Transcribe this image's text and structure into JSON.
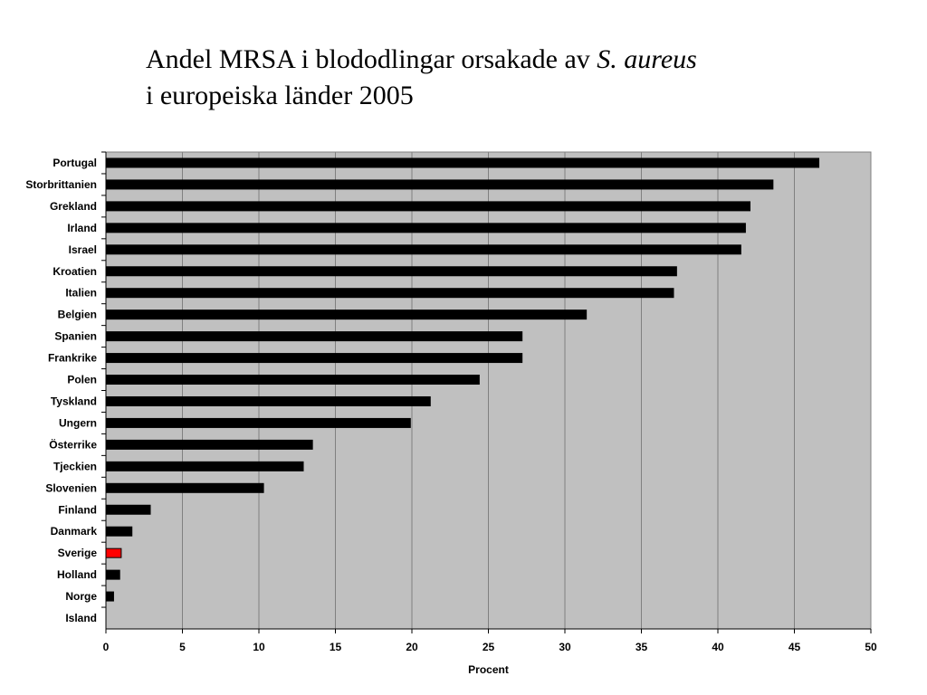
{
  "chart_data": {
    "type": "bar",
    "orientation": "horizontal",
    "title_parts": [
      {
        "text": "Andel MRSA i blododlingar orsakade av ",
        "italic": false,
        "line": 0
      },
      {
        "text": "S. aureus",
        "italic": true,
        "line": 0
      },
      {
        "text": "i europeiska länder 2005",
        "italic": false,
        "line": 1
      }
    ],
    "xlabel": "Procent",
    "ylabel": "",
    "xlim": [
      0,
      50
    ],
    "xticks": [
      "0",
      "5",
      "10",
      "15",
      "20",
      "25",
      "30",
      "35",
      "40",
      "45",
      "50"
    ],
    "grid": "vertical",
    "plot_background": "#c0c0c0",
    "bar_color": "#000000",
    "highlight_color": "#ff0000",
    "categories": [
      "Portugal",
      "Storbrittanien",
      "Grekland",
      "Irland",
      "Israel",
      "Kroatien",
      "Italien",
      "Belgien",
      "Spanien",
      "Frankrike",
      "Polen",
      "Tyskland",
      "Ungern",
      "Österrike",
      "Tjeckien",
      "Slovenien",
      "Finland",
      "Danmark",
      "Sverige",
      "Holland",
      "Norge",
      "Island"
    ],
    "values": [
      46.6,
      43.6,
      42.1,
      41.8,
      41.5,
      37.3,
      37.1,
      31.4,
      27.2,
      27.2,
      24.4,
      21.2,
      19.9,
      13.5,
      12.9,
      10.3,
      2.9,
      1.7,
      1.0,
      0.9,
      0.5,
      0
    ],
    "highlighted": [
      "Sverige"
    ]
  }
}
